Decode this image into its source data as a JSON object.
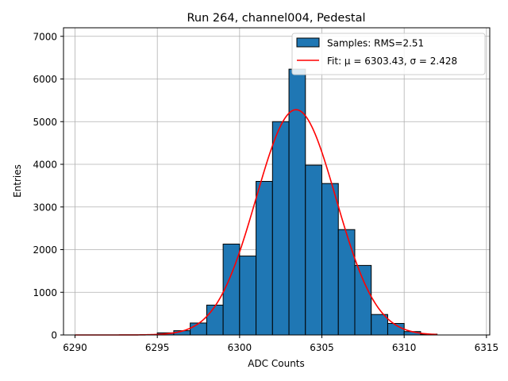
{
  "chart_data": {
    "type": "bar",
    "title": "Run 264, channel004, Pedestal",
    "xlabel": "ADC Counts",
    "ylabel": "Entries",
    "xlim": [
      6289.3,
      6315.2
    ],
    "ylim": [
      0,
      7200
    ],
    "xticks": [
      6290,
      6295,
      6300,
      6305,
      6310,
      6315
    ],
    "yticks": [
      0,
      1000,
      2000,
      3000,
      4000,
      5000,
      6000,
      7000
    ],
    "grid": true,
    "legend_position": "top-right",
    "series": [
      {
        "name": "Samples: RMS=2.51",
        "kind": "histogram",
        "color": "#1f77b4",
        "edgecolor": "#000000",
        "bins": [
          {
            "x0": 6295,
            "x1": 6296,
            "value": 50
          },
          {
            "x0": 6296,
            "x1": 6297,
            "value": 100
          },
          {
            "x0": 6297,
            "x1": 6298,
            "value": 280
          },
          {
            "x0": 6298,
            "x1": 6299,
            "value": 700
          },
          {
            "x0": 6299,
            "x1": 6300,
            "value": 2130
          },
          {
            "x0": 6300,
            "x1": 6301,
            "value": 1850
          },
          {
            "x0": 6301,
            "x1": 6302,
            "value": 3600
          },
          {
            "x0": 6302,
            "x1": 6303,
            "value": 5000
          },
          {
            "x0": 6303,
            "x1": 6304,
            "value": 6230
          },
          {
            "x0": 6304,
            "x1": 6305,
            "value": 3980
          },
          {
            "x0": 6305,
            "x1": 6306,
            "value": 3550
          },
          {
            "x0": 6306,
            "x1": 6307,
            "value": 2470
          },
          {
            "x0": 6307,
            "x1": 6308,
            "value": 1630
          },
          {
            "x0": 6308,
            "x1": 6309,
            "value": 480
          },
          {
            "x0": 6309,
            "x1": 6310,
            "value": 270
          },
          {
            "x0": 6310,
            "x1": 6311,
            "value": 80
          },
          {
            "x0": 6311,
            "x1": 6312,
            "value": 20
          }
        ]
      },
      {
        "name": "Fit: μ = 6303.43, σ = 2.428",
        "kind": "line",
        "color": "#ff0000",
        "mu": 6303.43,
        "sigma": 2.428,
        "peak": 5280,
        "x_range": [
          6290,
          6312
        ]
      }
    ]
  }
}
